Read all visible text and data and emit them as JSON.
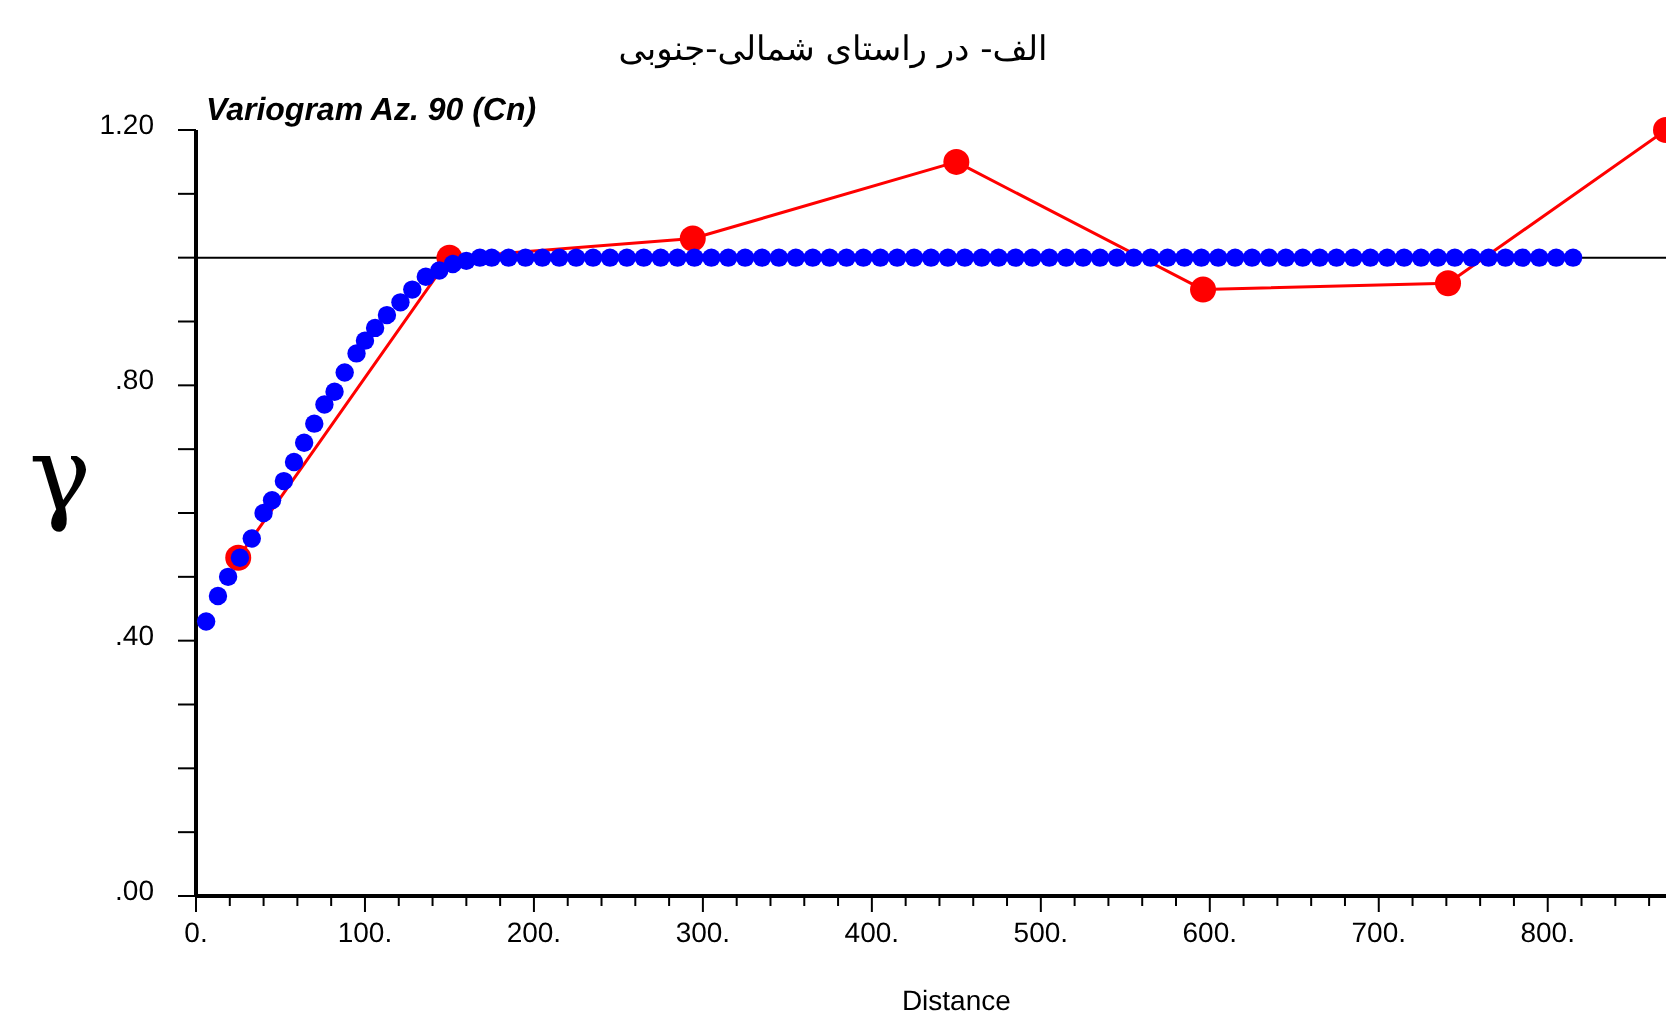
{
  "chart_data": {
    "type": "line",
    "title": "الف- در راستای شمالی-جنوبی",
    "subtitle": "Variogram Az. 90 (Cn)",
    "xlabel": "Distance",
    "ylabel": "γ",
    "xlim": [
      0,
      870
    ],
    "ylim": [
      0,
      1.2
    ],
    "xticks": [
      {
        "value": 0,
        "label": "0."
      },
      {
        "value": 20,
        "label": null
      },
      {
        "value": 40,
        "label": null
      },
      {
        "value": 60,
        "label": null
      },
      {
        "value": 80,
        "label": null
      },
      {
        "value": 100,
        "label": "100."
      },
      {
        "value": 120,
        "label": null
      },
      {
        "value": 140,
        "label": null
      },
      {
        "value": 160,
        "label": null
      },
      {
        "value": 180,
        "label": null
      },
      {
        "value": 200,
        "label": "200."
      },
      {
        "value": 220,
        "label": null
      },
      {
        "value": 240,
        "label": null
      },
      {
        "value": 260,
        "label": null
      },
      {
        "value": 280,
        "label": null
      },
      {
        "value": 300,
        "label": "300."
      },
      {
        "value": 320,
        "label": null
      },
      {
        "value": 340,
        "label": null
      },
      {
        "value": 360,
        "label": null
      },
      {
        "value": 380,
        "label": null
      },
      {
        "value": 400,
        "label": "400."
      },
      {
        "value": 420,
        "label": null
      },
      {
        "value": 440,
        "label": null
      },
      {
        "value": 460,
        "label": null
      },
      {
        "value": 480,
        "label": null
      },
      {
        "value": 500,
        "label": "500."
      },
      {
        "value": 520,
        "label": null
      },
      {
        "value": 540,
        "label": null
      },
      {
        "value": 560,
        "label": null
      },
      {
        "value": 580,
        "label": null
      },
      {
        "value": 600,
        "label": "600."
      },
      {
        "value": 620,
        "label": null
      },
      {
        "value": 640,
        "label": null
      },
      {
        "value": 660,
        "label": null
      },
      {
        "value": 680,
        "label": null
      },
      {
        "value": 700,
        "label": "700."
      },
      {
        "value": 720,
        "label": null
      },
      {
        "value": 740,
        "label": null
      },
      {
        "value": 760,
        "label": null
      },
      {
        "value": 780,
        "label": null
      },
      {
        "value": 800,
        "label": "800."
      },
      {
        "value": 820,
        "label": null
      },
      {
        "value": 840,
        "label": null
      },
      {
        "value": 860,
        "label": null
      }
    ],
    "yticks": [
      {
        "value": 0,
        "label": ".00"
      },
      {
        "value": 0.1,
        "label": null
      },
      {
        "value": 0.2,
        "label": null
      },
      {
        "value": 0.3,
        "label": null
      },
      {
        "value": 0.4,
        "label": ".40"
      },
      {
        "value": 0.5,
        "label": null
      },
      {
        "value": 0.6,
        "label": null
      },
      {
        "value": 0.7,
        "label": null
      },
      {
        "value": 0.8,
        "label": ".80"
      },
      {
        "value": 0.9,
        "label": null
      },
      {
        "value": 1.0,
        "label": null
      },
      {
        "value": 1.1,
        "label": null
      },
      {
        "value": 1.2,
        "label": "1.20"
      }
    ],
    "grid": false,
    "ref_lines": [
      {
        "axis": "y",
        "value": 1.0,
        "color": "#000000",
        "line_style": "solid"
      }
    ],
    "series": [
      {
        "type": "line",
        "color": "#ff0000",
        "marker": "circle",
        "line_style": "solid",
        "x": [
          25,
          150,
          294,
          450,
          596,
          741,
          870
        ],
        "values": [
          0.53,
          1.0,
          1.03,
          1.15,
          0.95,
          0.96,
          1.2
        ]
      },
      {
        "type": "scatter",
        "color": "#0000ff",
        "marker": "circle",
        "x": [
          6,
          13,
          19,
          26,
          33,
          40,
          45,
          52,
          58,
          64,
          70,
          76,
          82,
          88,
          95,
          100,
          106,
          113,
          121,
          128,
          136,
          144,
          152,
          160,
          168,
          175,
          185,
          195,
          205,
          215,
          225,
          235,
          245,
          255,
          265,
          275,
          285,
          295,
          305,
          315,
          325,
          335,
          345,
          355,
          365,
          375,
          385,
          395,
          405,
          415,
          425,
          435,
          445,
          455,
          465,
          475,
          485,
          495,
          505,
          515,
          525,
          535,
          545,
          555,
          565,
          575,
          585,
          595,
          605,
          615,
          625,
          635,
          645,
          655,
          665,
          675,
          685,
          695,
          705,
          715,
          725,
          735,
          745,
          755,
          765,
          775,
          785,
          795,
          805,
          815
        ],
        "values": [
          0.43,
          0.47,
          0.5,
          0.53,
          0.56,
          0.6,
          0.62,
          0.65,
          0.68,
          0.71,
          0.74,
          0.77,
          0.79,
          0.82,
          0.85,
          0.87,
          0.89,
          0.91,
          0.93,
          0.95,
          0.97,
          0.98,
          0.99,
          0.995,
          1.0,
          1.0,
          1.0,
          1.0,
          1.0,
          1.0,
          1.0,
          1.0,
          1.0,
          1.0,
          1.0,
          1.0,
          1.0,
          1.0,
          1.0,
          1.0,
          1.0,
          1.0,
          1.0,
          1.0,
          1.0,
          1.0,
          1.0,
          1.0,
          1.0,
          1.0,
          1.0,
          1.0,
          1.0,
          1.0,
          1.0,
          1.0,
          1.0,
          1.0,
          1.0,
          1.0,
          1.0,
          1.0,
          1.0,
          1.0,
          1.0,
          1.0,
          1.0,
          1.0,
          1.0,
          1.0,
          1.0,
          1.0,
          1.0,
          1.0,
          1.0,
          1.0,
          1.0,
          1.0,
          1.0,
          1.0,
          1.0,
          1.0,
          1.0,
          1.0,
          1.0,
          1.0,
          1.0,
          1.0,
          1.0,
          1.0
        ]
      }
    ]
  }
}
